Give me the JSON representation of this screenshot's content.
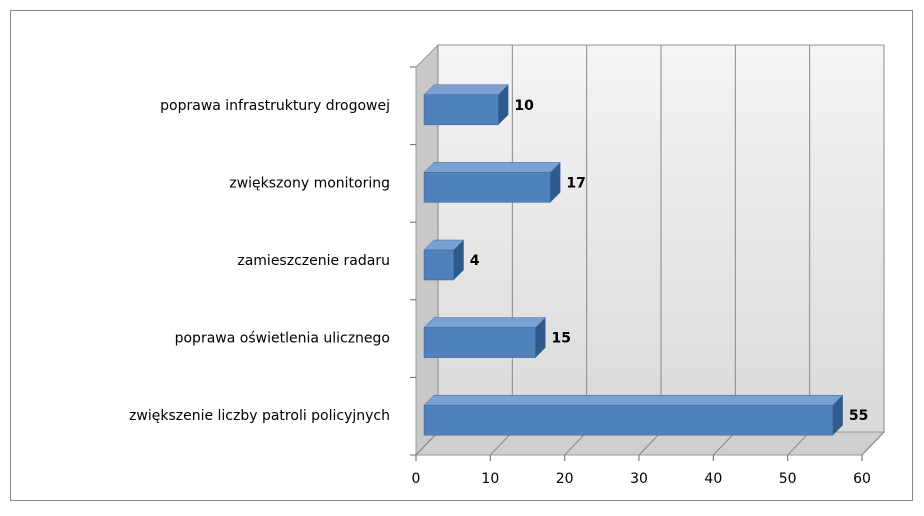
{
  "chart_data": {
    "type": "bar3d_horizontal",
    "categories": [
      "poprawa infrastruktury drogowej",
      "zwiększony monitoring",
      "zamieszczenie radaru",
      "poprawa oświetlenia ulicznego",
      "zwiększenie liczby patroli policyjnych"
    ],
    "values": [
      10,
      17,
      4,
      15,
      55
    ],
    "color": "#4f81bd",
    "xlim": [
      0,
      60
    ],
    "xticks": [
      0,
      10,
      20,
      30,
      40,
      50,
      60
    ],
    "grid": true
  }
}
